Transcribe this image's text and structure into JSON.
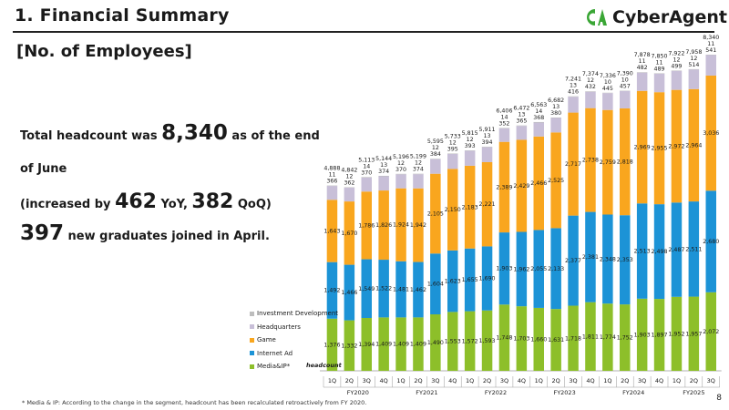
{
  "header": {
    "title": "1.  Financial Summary",
    "subtitle": "[No. of Employees]",
    "logo_text": "CyberAgent",
    "page_number": "8"
  },
  "headline": {
    "line1_pre": "Total headcount was ",
    "line1_num": "8,340",
    "line1_post": " as of the end of June",
    "line2_pre": "(increased by ",
    "line2_num1": "462",
    "line2_mid": " YoY, ",
    "line2_num2": "382",
    "line2_post": " QoQ)",
    "line3_num": "397",
    "line3_post": " new graduates joined in April."
  },
  "footnote": "* Media & IP: According to the change in the segment, headcount has been recalculated retroactively from FY 2020.",
  "colors": {
    "media_ip": "#8dbf2a",
    "internet_ad": "#1c93d6",
    "game": "#f9a61e",
    "headquarters": "#c8bfd8",
    "investment": "#bdbdbd"
  },
  "chart_data": {
    "type": "bar",
    "stacked": true,
    "y_axis_label": "headcount",
    "quarters": [
      "1Q",
      "2Q",
      "3Q",
      "4Q",
      "1Q",
      "2Q",
      "3Q",
      "4Q",
      "1Q",
      "2Q",
      "3Q",
      "4Q",
      "1Q",
      "2Q",
      "3Q",
      "4Q",
      "1Q",
      "2Q",
      "3Q",
      "4Q",
      "1Q",
      "2Q",
      "3Q"
    ],
    "fiscal_years": [
      {
        "label": "FY2020",
        "span": 4
      },
      {
        "label": "FY2021",
        "span": 4
      },
      {
        "label": "FY2022",
        "span": 4
      },
      {
        "label": "FY2023",
        "span": 4
      },
      {
        "label": "FY2024",
        "span": 4
      },
      {
        "label": "FY2025",
        "span": 3
      }
    ],
    "totals": [
      "4,888",
      "4,842",
      "5,113",
      "5,144",
      "5,196",
      "5,199",
      "5,595",
      "5,733",
      "5,815",
      "5,911",
      "6,406",
      "6,472",
      "6,563",
      "6,682",
      "7,241",
      "7,374",
      "7,336",
      "7,390",
      "7,878",
      "7,850",
      "7,922",
      "7,958",
      "8,340"
    ],
    "series": [
      {
        "name": "Media&IP*",
        "color_key": "media_ip",
        "values": [
          1376,
          1332,
          1394,
          1409,
          1409,
          1409,
          1490,
          1553,
          1572,
          1593,
          1748,
          1703,
          1660,
          1631,
          1718,
          1811,
          1774,
          1752,
          1903,
          1897,
          1952,
          1957,
          2072
        ]
      },
      {
        "name": "Internet Ad",
        "color_key": "internet_ad",
        "values": [
          1492,
          1466,
          1549,
          1522,
          1481,
          1462,
          1604,
          1623,
          1655,
          1690,
          1903,
          1962,
          2055,
          2133,
          2377,
          2381,
          2348,
          2353,
          2513,
          2498,
          2487,
          2511,
          2680
        ]
      },
      {
        "name": "Game",
        "color_key": "game",
        "values": [
          1643,
          1670,
          1786,
          1826,
          1924,
          1942,
          2105,
          2150,
          2183,
          2221,
          2389,
          2429,
          2466,
          2525,
          2717,
          2738,
          2759,
          2818,
          2969,
          2955,
          2972,
          2964,
          3036
        ]
      },
      {
        "name": "Headquarters",
        "color_key": "headquarters",
        "values": [
          366,
          362,
          370,
          374,
          370,
          374,
          384,
          395,
          393,
          394,
          352,
          365,
          368,
          380,
          416,
          432,
          445,
          457,
          482,
          489,
          499,
          514,
          541
        ]
      },
      {
        "name": "Investment Development",
        "color_key": "investment",
        "values": [
          11,
          12,
          14,
          13,
          12,
          12,
          12,
          12,
          12,
          13,
          14,
          13,
          14,
          13,
          13,
          12,
          10,
          10,
          11,
          11,
          12,
          12,
          11
        ]
      }
    ],
    "legend_order": [
      "Investment Development",
      "Headquarters",
      "Game",
      "Internet Ad",
      "Media&IP*"
    ]
  }
}
